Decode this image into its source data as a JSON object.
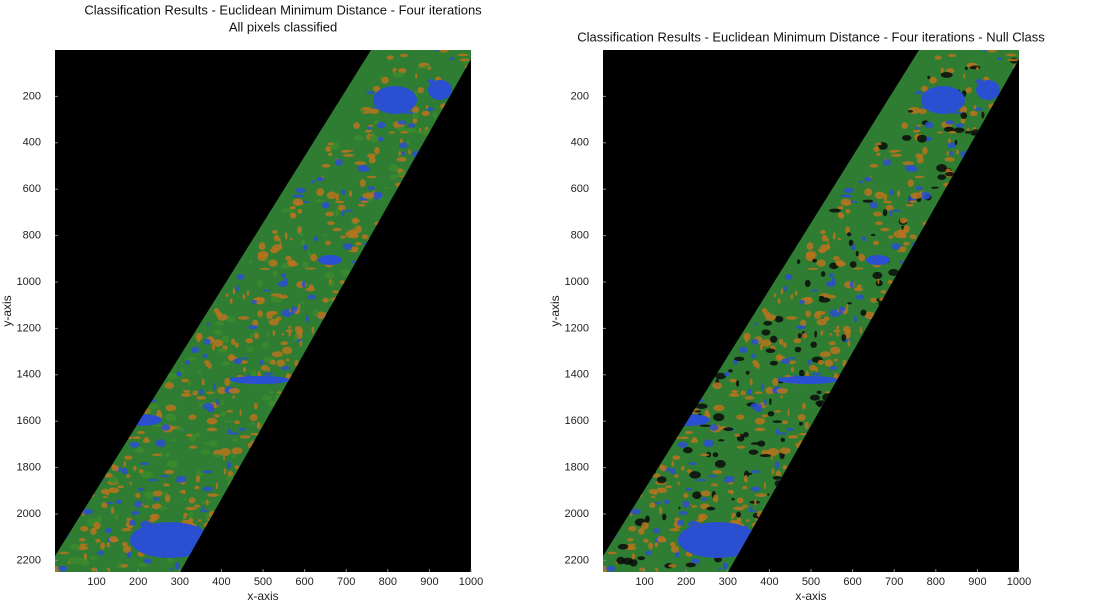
{
  "chart_data": [
    {
      "type": "image",
      "title": "Classification Results - Euclidean Minimum Distance - Four iterations",
      "subtitle": "All pixels classified",
      "xlabel": "x-axis",
      "ylabel": "y-axis",
      "xlim": [
        0,
        1000
      ],
      "ylim": [
        2250,
        0
      ],
      "xticks": [
        100,
        200,
        300,
        400,
        500,
        600,
        700,
        800,
        900,
        1000
      ],
      "yticks": [
        200,
        400,
        600,
        800,
        1000,
        1200,
        1400,
        1600,
        1800,
        2000,
        2200
      ]
    },
    {
      "type": "image",
      "title": "Classification Results - Euclidean Minimum Distance - Four iterations - Null Class",
      "xlabel": "x-axis",
      "ylabel": "y-axis",
      "xlim": [
        0,
        1000
      ],
      "ylim": [
        2250,
        0
      ],
      "xticks": [
        100,
        200,
        300,
        400,
        500,
        600,
        700,
        800,
        900,
        1000
      ],
      "yticks": [
        200,
        400,
        600,
        800,
        1000,
        1200,
        1400,
        1600,
        1800,
        2000,
        2200
      ]
    }
  ]
}
